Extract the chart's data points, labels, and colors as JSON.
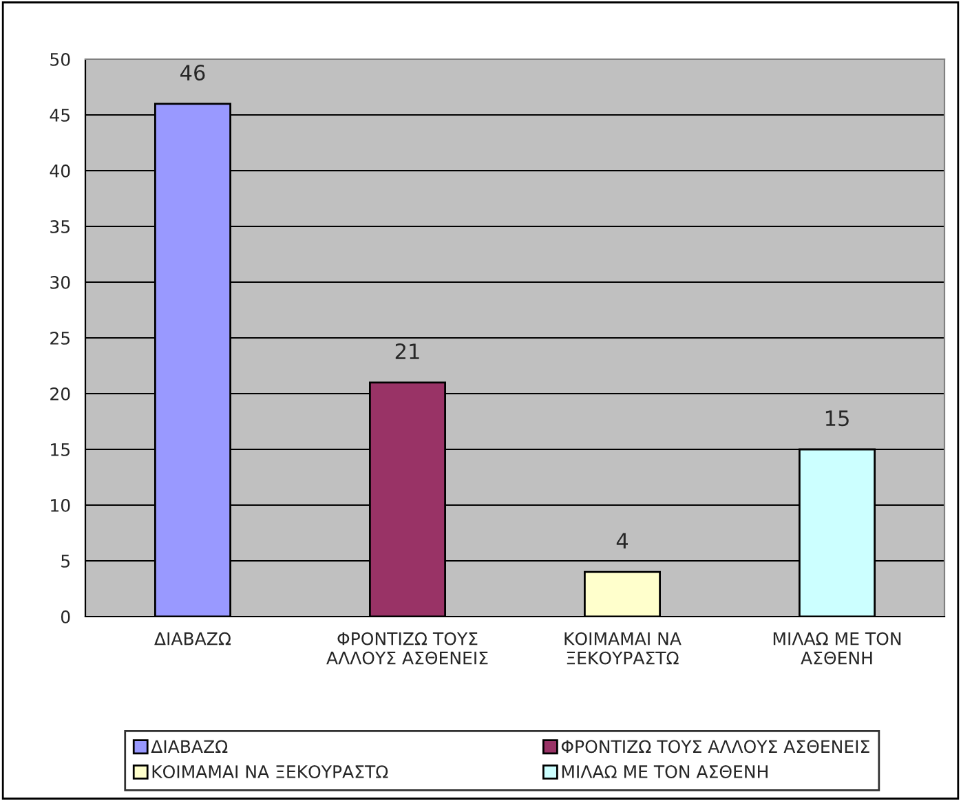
{
  "chart_data": {
    "type": "bar",
    "categories": [
      "ΔΙΑΒΑΖΩ",
      "ΦΡΟΝΤΙΖΩ ΤΟΥΣ ΑΛΛΟΥΣ ΑΣΘΕΝΕΙΣ",
      "ΚΟΙΜΑΜΑΙ ΝΑ ΞΕΚΟΥΡΑΣΤΩ",
      "ΜΙΛΑΩ ΜΕ ΤΟΝ ΑΣΘΕΝΗ"
    ],
    "series": [
      {
        "name": "ΔΙΑΒΑΖΩ",
        "color": "#9999ff",
        "values": [
          46,
          null,
          null,
          null
        ]
      },
      {
        "name": "ΦΡΟΝΤΙΖΩ ΤΟΥΣ ΑΛΛΟΥΣ ΑΣΘΕΝΕΙΣ",
        "color": "#993366",
        "values": [
          null,
          21,
          null,
          null
        ]
      },
      {
        "name": "ΚΟΙΜΑΜΑΙ ΝΑ ΞΕΚΟΥΡΑΣΤΩ",
        "color": "#ffffcc",
        "values": [
          null,
          null,
          4,
          null
        ]
      },
      {
        "name": "ΜΙΛΑΩ ΜΕ ΤΟΝ ΑΣΘΕΝΗ",
        "color": "#ccffff",
        "values": [
          null,
          null,
          null,
          15
        ]
      }
    ],
    "ylim": [
      0,
      50
    ],
    "yticks": [
      0,
      5,
      10,
      15,
      20,
      25,
      30,
      35,
      40,
      45,
      50
    ],
    "grid": "y",
    "legend": "bottom",
    "data_labels": true
  }
}
